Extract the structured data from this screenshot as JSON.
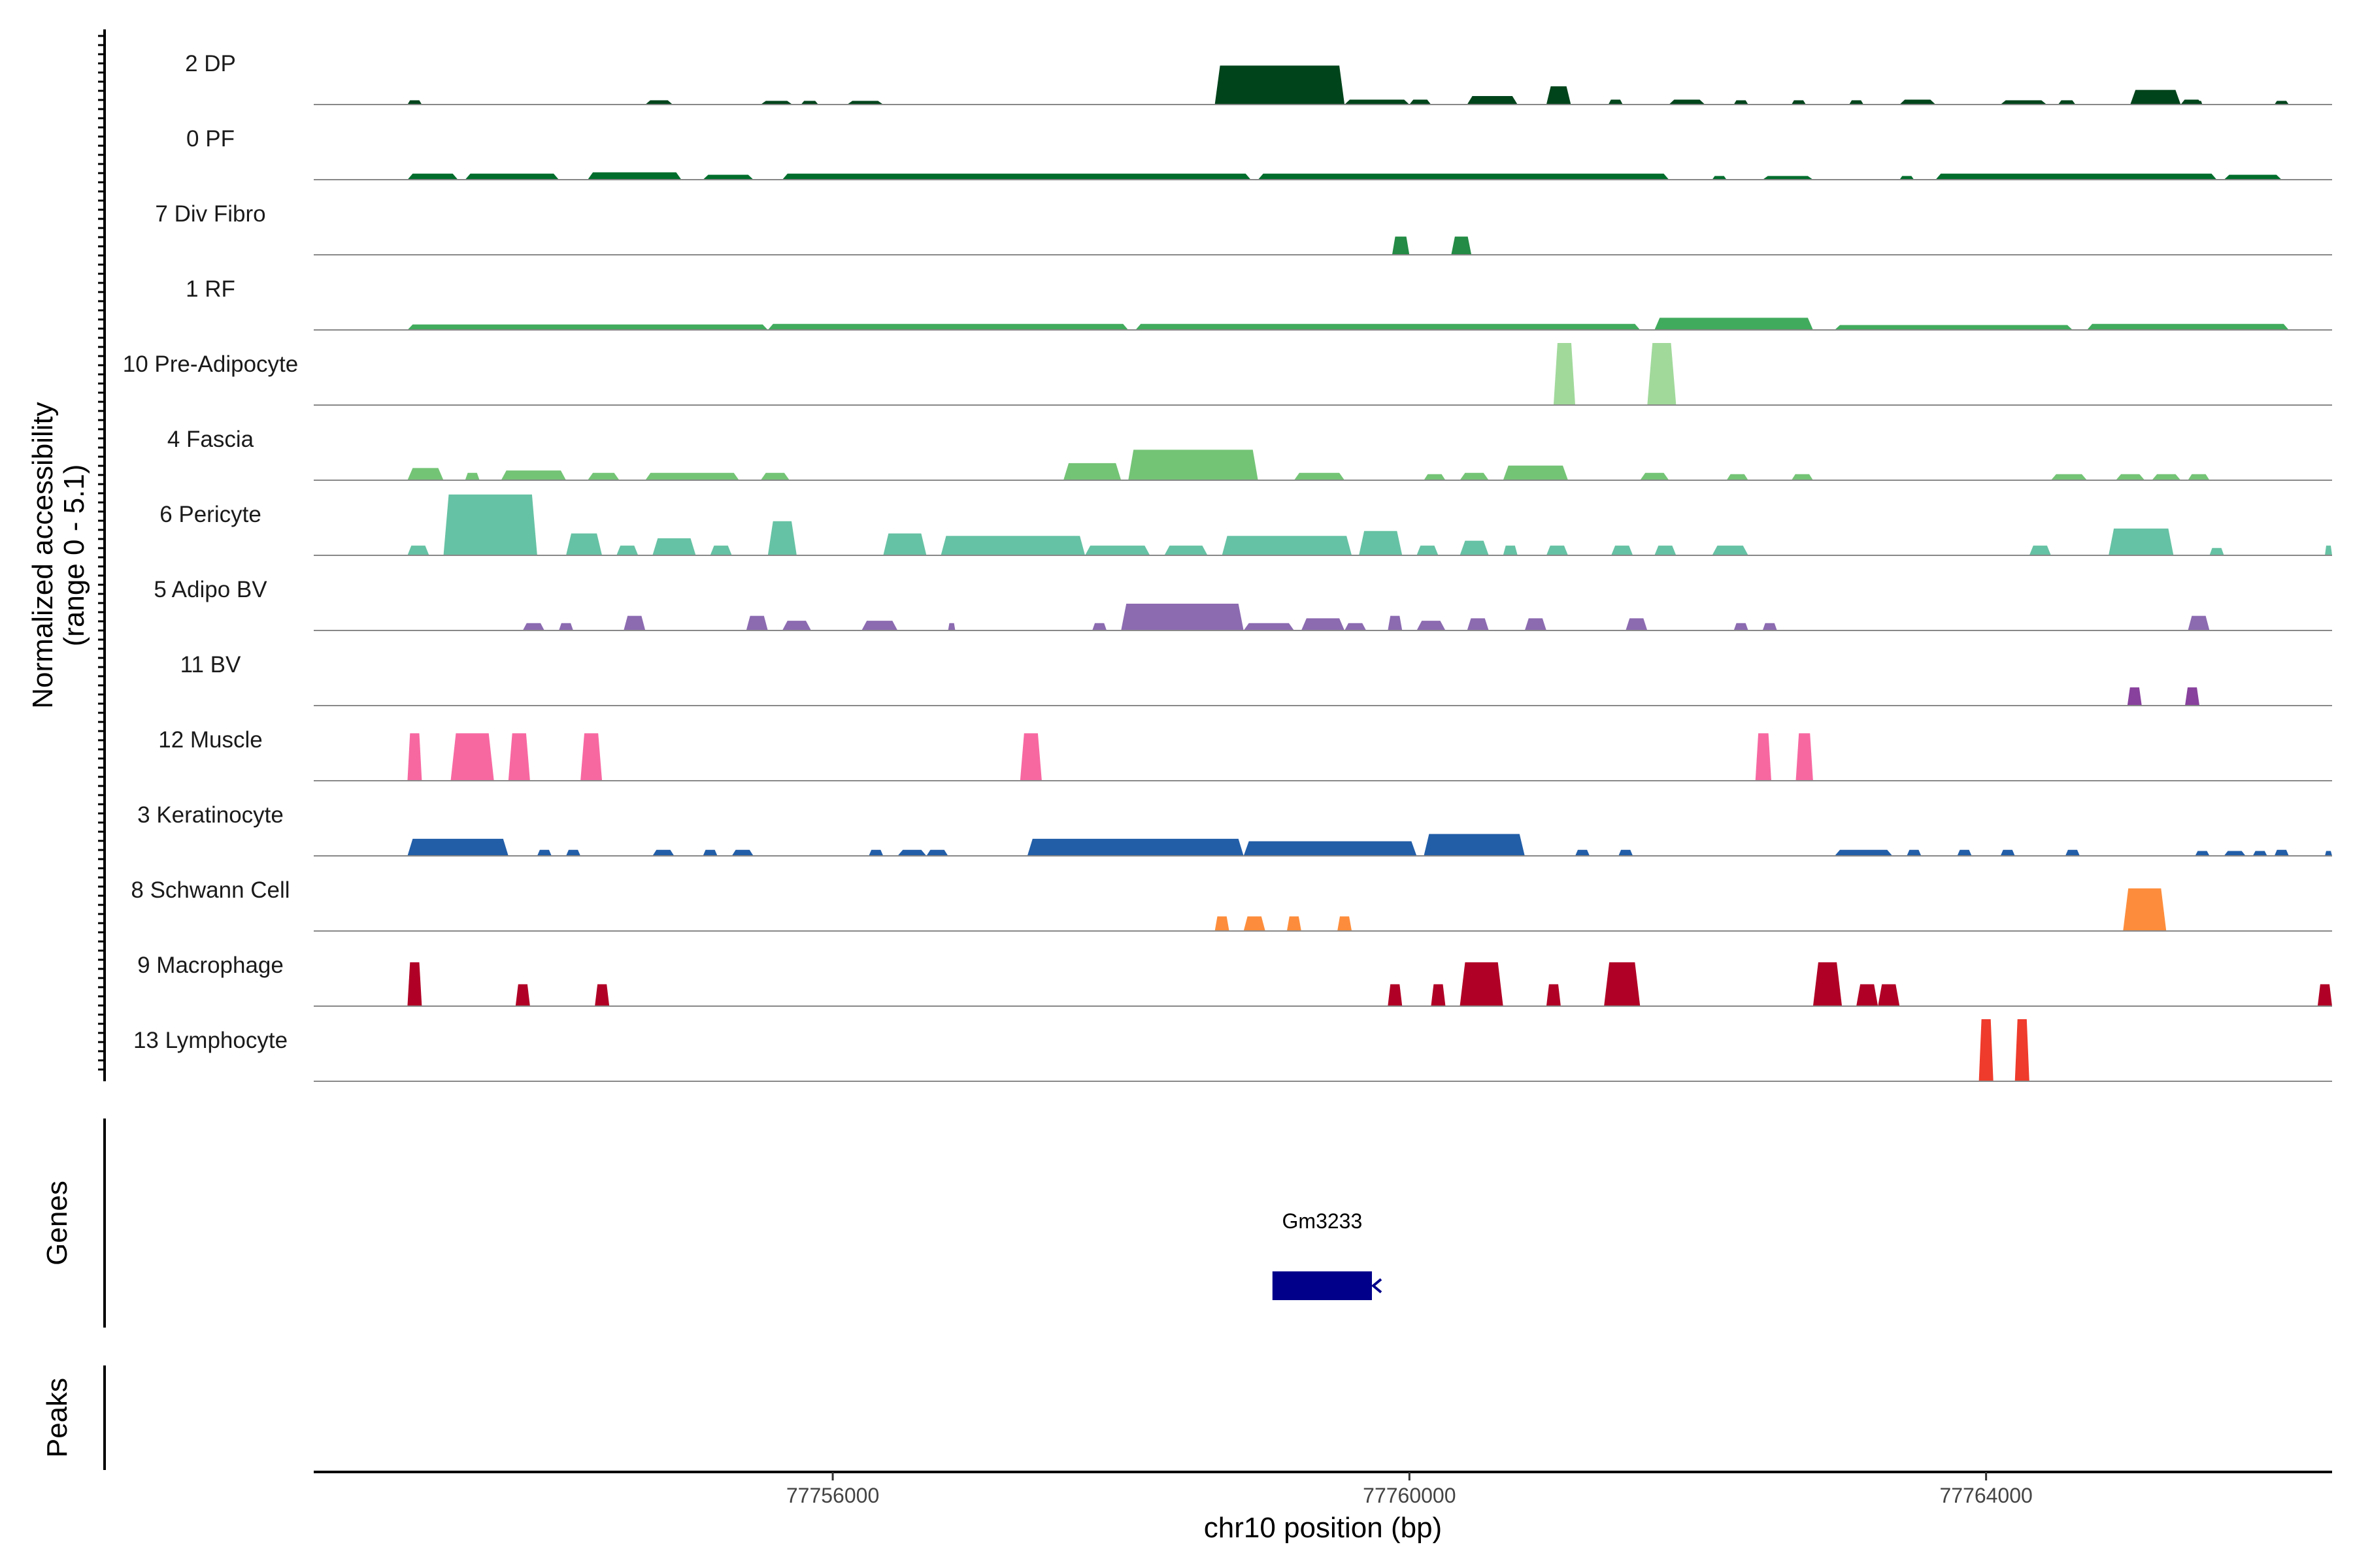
{
  "chart_data": {
    "type": "area",
    "title": "",
    "xlabel": "chr10 position (bp)",
    "ylabel_line1": "Normalized accessibility",
    "ylabel_line2": "(range 0 - 5.1)",
    "y_range": [
      0,
      5.1
    ],
    "x_range": [
      77752400,
      77766400
    ],
    "x_ticks": [
      77756000,
      77760000,
      77764000
    ],
    "x_tick_labels": [
      "77756000",
      "77760000",
      "77764000"
    ],
    "genes_label": "Genes",
    "peaks_label": "Peaks",
    "genes": [
      {
        "name": "Gm3233",
        "start": 77759050,
        "end": 77759740,
        "strand": "-",
        "color": "#00008B"
      }
    ],
    "peaks": [],
    "tracks": [
      {
        "name": "2 DP",
        "color": "#00441B",
        "peaks": [
          [
            77753050,
            77753150,
            0.35
          ],
          [
            77754700,
            77754890,
            0.35
          ],
          [
            77755500,
            77755720,
            0.3
          ],
          [
            77755780,
            77755900,
            0.3
          ],
          [
            77756100,
            77756350,
            0.3
          ],
          [
            77758650,
            77759550,
            3.2
          ],
          [
            77759550,
            77760000,
            0.4
          ],
          [
            77760000,
            77760150,
            0.4
          ],
          [
            77760400,
            77760750,
            0.7
          ],
          [
            77760950,
            77761120,
            1.5
          ],
          [
            77761380,
            77761480,
            0.4
          ],
          [
            77761800,
            77762050,
            0.4
          ],
          [
            77762250,
            77762350,
            0.35
          ],
          [
            77762650,
            77762750,
            0.35
          ],
          [
            77763050,
            77763150,
            0.35
          ],
          [
            77763400,
            77763650,
            0.4
          ],
          [
            77764100,
            77764420,
            0.35
          ],
          [
            77764500,
            77764620,
            0.35
          ],
          [
            77765000,
            77765350,
            1.2
          ],
          [
            77765350,
            77765500,
            0.4
          ],
          [
            77765450,
            77765500,
            0.3
          ],
          [
            77766000,
            77766100,
            0.3
          ]
        ]
      },
      {
        "name": "0 PF",
        "color": "#006D2C",
        "peaks": [
          [
            77753050,
            77753400,
            0.5
          ],
          [
            77753450,
            77754100,
            0.5
          ],
          [
            77754300,
            77754950,
            0.6
          ],
          [
            77755100,
            77755450,
            0.4
          ],
          [
            77755650,
            77758900,
            0.5
          ],
          [
            77758950,
            77761800,
            0.5
          ],
          [
            77762100,
            77762200,
            0.3
          ],
          [
            77762450,
            77762800,
            0.3
          ],
          [
            77763400,
            77763500,
            0.3
          ],
          [
            77763650,
            77765600,
            0.5
          ],
          [
            77765650,
            77766050,
            0.4
          ]
        ]
      },
      {
        "name": "7 Div Fibro",
        "color": "#238B45",
        "peaks": [
          [
            77759880,
            77760000,
            1.5
          ],
          [
            77760290,
            77760430,
            1.5
          ]
        ]
      },
      {
        "name": "1 RF",
        "color": "#41AB5D",
        "peaks": [
          [
            77753050,
            77755550,
            0.45
          ],
          [
            77755550,
            77758050,
            0.5
          ],
          [
            77758100,
            77761600,
            0.5
          ],
          [
            77761700,
            77762800,
            1.0
          ],
          [
            77762950,
            77764600,
            0.4
          ],
          [
            77764700,
            77766100,
            0.5
          ]
        ]
      },
      {
        "name": "10 Pre-Adipocyte",
        "color": "#A1D99B",
        "peaks": [
          [
            77761000,
            77761150,
            5.1
          ],
          [
            77761650,
            77761850,
            5.1
          ]
        ]
      },
      {
        "name": "4 Fascia",
        "color": "#74C476",
        "peaks": [
          [
            77753050,
            77753300,
            1.0
          ],
          [
            77753450,
            77753550,
            0.6
          ],
          [
            77753700,
            77754150,
            0.8
          ],
          [
            77754300,
            77754520,
            0.6
          ],
          [
            77754700,
            77755350,
            0.6
          ],
          [
            77755500,
            77755700,
            0.6
          ],
          [
            77757600,
            77758000,
            1.4
          ],
          [
            77758050,
            77758950,
            2.5
          ],
          [
            77759200,
            77759550,
            0.6
          ],
          [
            77760100,
            77760250,
            0.5
          ],
          [
            77760350,
            77760550,
            0.6
          ],
          [
            77760650,
            77761100,
            1.2
          ],
          [
            77761600,
            77761800,
            0.6
          ],
          [
            77762200,
            77762350,
            0.5
          ],
          [
            77762650,
            77762800,
            0.5
          ],
          [
            77764450,
            77764700,
            0.5
          ],
          [
            77764900,
            77765100,
            0.5
          ],
          [
            77765150,
            77765350,
            0.5
          ],
          [
            77765400,
            77765550,
            0.5
          ]
        ]
      },
      {
        "name": "6 Pericyte",
        "color": "#66C2A4",
        "peaks": [
          [
            77753050,
            77753200,
            0.8
          ],
          [
            77753300,
            77753950,
            5.0
          ],
          [
            77754150,
            77754400,
            1.8
          ],
          [
            77754500,
            77754650,
            0.8
          ],
          [
            77754750,
            77755050,
            1.4
          ],
          [
            77755150,
            77755300,
            0.8
          ],
          [
            77755550,
            77755750,
            2.8
          ],
          [
            77756350,
            77756650,
            1.8
          ],
          [
            77756750,
            77757750,
            1.6
          ],
          [
            77757750,
            77758200,
            0.8
          ],
          [
            77758300,
            77758600,
            0.8
          ],
          [
            77758700,
            77759600,
            1.6
          ],
          [
            77759650,
            77759950,
            2.0
          ],
          [
            77760050,
            77760200,
            0.8
          ],
          [
            77760350,
            77760550,
            1.2
          ],
          [
            77760650,
            77760750,
            0.8
          ],
          [
            77760950,
            77761100,
            0.8
          ],
          [
            77761400,
            77761550,
            0.8
          ],
          [
            77761700,
            77761850,
            0.8
          ],
          [
            77762100,
            77762350,
            0.8
          ],
          [
            77764300,
            77764450,
            0.8
          ],
          [
            77764850,
            77765300,
            2.2
          ],
          [
            77765550,
            77765650,
            0.6
          ],
          [
            77766350,
            77766400,
            0.8
          ]
        ]
      },
      {
        "name": "5 Adipo BV",
        "color": "#8C6BB1",
        "peaks": [
          [
            77753850,
            77754000,
            0.6
          ],
          [
            77754100,
            77754200,
            0.6
          ],
          [
            77754550,
            77754700,
            1.2
          ],
          [
            77755400,
            77755550,
            1.2
          ],
          [
            77755650,
            77755850,
            0.8
          ],
          [
            77756200,
            77756450,
            0.8
          ],
          [
            77756800,
            77756850,
            0.6
          ],
          [
            77757800,
            77757900,
            0.6
          ],
          [
            77758000,
            77758850,
            2.2
          ],
          [
            77758850,
            77759200,
            0.6
          ],
          [
            77759250,
            77759550,
            1.0
          ],
          [
            77759550,
            77759700,
            0.6
          ],
          [
            77759850,
            77759950,
            1.2
          ],
          [
            77760050,
            77760250,
            0.8
          ],
          [
            77760400,
            77760550,
            1.0
          ],
          [
            77760800,
            77760950,
            1.0
          ],
          [
            77761500,
            77761650,
            1.0
          ],
          [
            77762250,
            77762350,
            0.6
          ],
          [
            77762450,
            77762550,
            0.6
          ],
          [
            77765400,
            77765550,
            1.2
          ]
        ]
      },
      {
        "name": "11 BV",
        "color": "#88419D",
        "peaks": [
          [
            77764980,
            77765080,
            1.5
          ],
          [
            77765380,
            77765480,
            1.5
          ]
        ]
      },
      {
        "name": "12 Muscle",
        "color": "#F768A1",
        "peaks": [
          [
            77753050,
            77753150,
            3.9
          ],
          [
            77753350,
            77753650,
            3.9
          ],
          [
            77753750,
            77753900,
            3.9
          ],
          [
            77754250,
            77754400,
            3.9
          ],
          [
            77757300,
            77757450,
            3.9
          ],
          [
            77762400,
            77762510,
            3.9
          ],
          [
            77762680,
            77762800,
            3.9
          ]
        ]
      },
      {
        "name": "3 Keratinocyte",
        "color": "#225EA8",
        "peaks": [
          [
            77753050,
            77753750,
            1.4
          ],
          [
            77753950,
            77754050,
            0.5
          ],
          [
            77754150,
            77754250,
            0.5
          ],
          [
            77754750,
            77754900,
            0.5
          ],
          [
            77755100,
            77755200,
            0.5
          ],
          [
            77755300,
            77755450,
            0.5
          ],
          [
            77756250,
            77756350,
            0.5
          ],
          [
            77756450,
            77756650,
            0.5
          ],
          [
            77756650,
            77756800,
            0.5
          ],
          [
            77757350,
            77758850,
            1.4
          ],
          [
            77758850,
            77760050,
            1.2
          ],
          [
            77760100,
            77760800,
            1.8
          ],
          [
            77761150,
            77761250,
            0.5
          ],
          [
            77761450,
            77761550,
            0.5
          ],
          [
            77762950,
            77763350,
            0.5
          ],
          [
            77763450,
            77763550,
            0.5
          ],
          [
            77763800,
            77763900,
            0.5
          ],
          [
            77764100,
            77764200,
            0.5
          ],
          [
            77764550,
            77764650,
            0.5
          ],
          [
            77765450,
            77765550,
            0.4
          ],
          [
            77765650,
            77765800,
            0.4
          ],
          [
            77765850,
            77765950,
            0.4
          ],
          [
            77766000,
            77766100,
            0.5
          ],
          [
            77766350,
            77766400,
            0.4
          ]
        ]
      },
      {
        "name": "8 Schwann Cell",
        "color": "#FD8D3C",
        "peaks": [
          [
            77758650,
            77758750,
            1.2
          ],
          [
            77758850,
            77759000,
            1.2
          ],
          [
            77759150,
            77759250,
            1.2
          ],
          [
            77759500,
            77759600,
            1.2
          ],
          [
            77764950,
            77765250,
            3.5
          ]
        ]
      },
      {
        "name": "9 Macrophage",
        "color": "#B10026",
        "peaks": [
          [
            77753050,
            77753150,
            3.6
          ],
          [
            77753800,
            77753900,
            1.8
          ],
          [
            77754350,
            77754450,
            1.8
          ],
          [
            77759850,
            77759950,
            1.8
          ],
          [
            77760150,
            77760250,
            1.8
          ],
          [
            77760350,
            77760650,
            3.6
          ],
          [
            77760950,
            77761050,
            1.8
          ],
          [
            77761350,
            77761600,
            3.6
          ],
          [
            77762800,
            77763000,
            3.6
          ],
          [
            77763100,
            77763250,
            1.8
          ],
          [
            77763250,
            77763400,
            1.8
          ],
          [
            77766300,
            77766400,
            1.8
          ]
        ]
      },
      {
        "name": "13 Lymphocyte",
        "color": "#EF3B2C",
        "peaks": [
          [
            77763950,
            77764050,
            5.1
          ],
          [
            77764200,
            77764300,
            5.1
          ]
        ]
      }
    ]
  }
}
